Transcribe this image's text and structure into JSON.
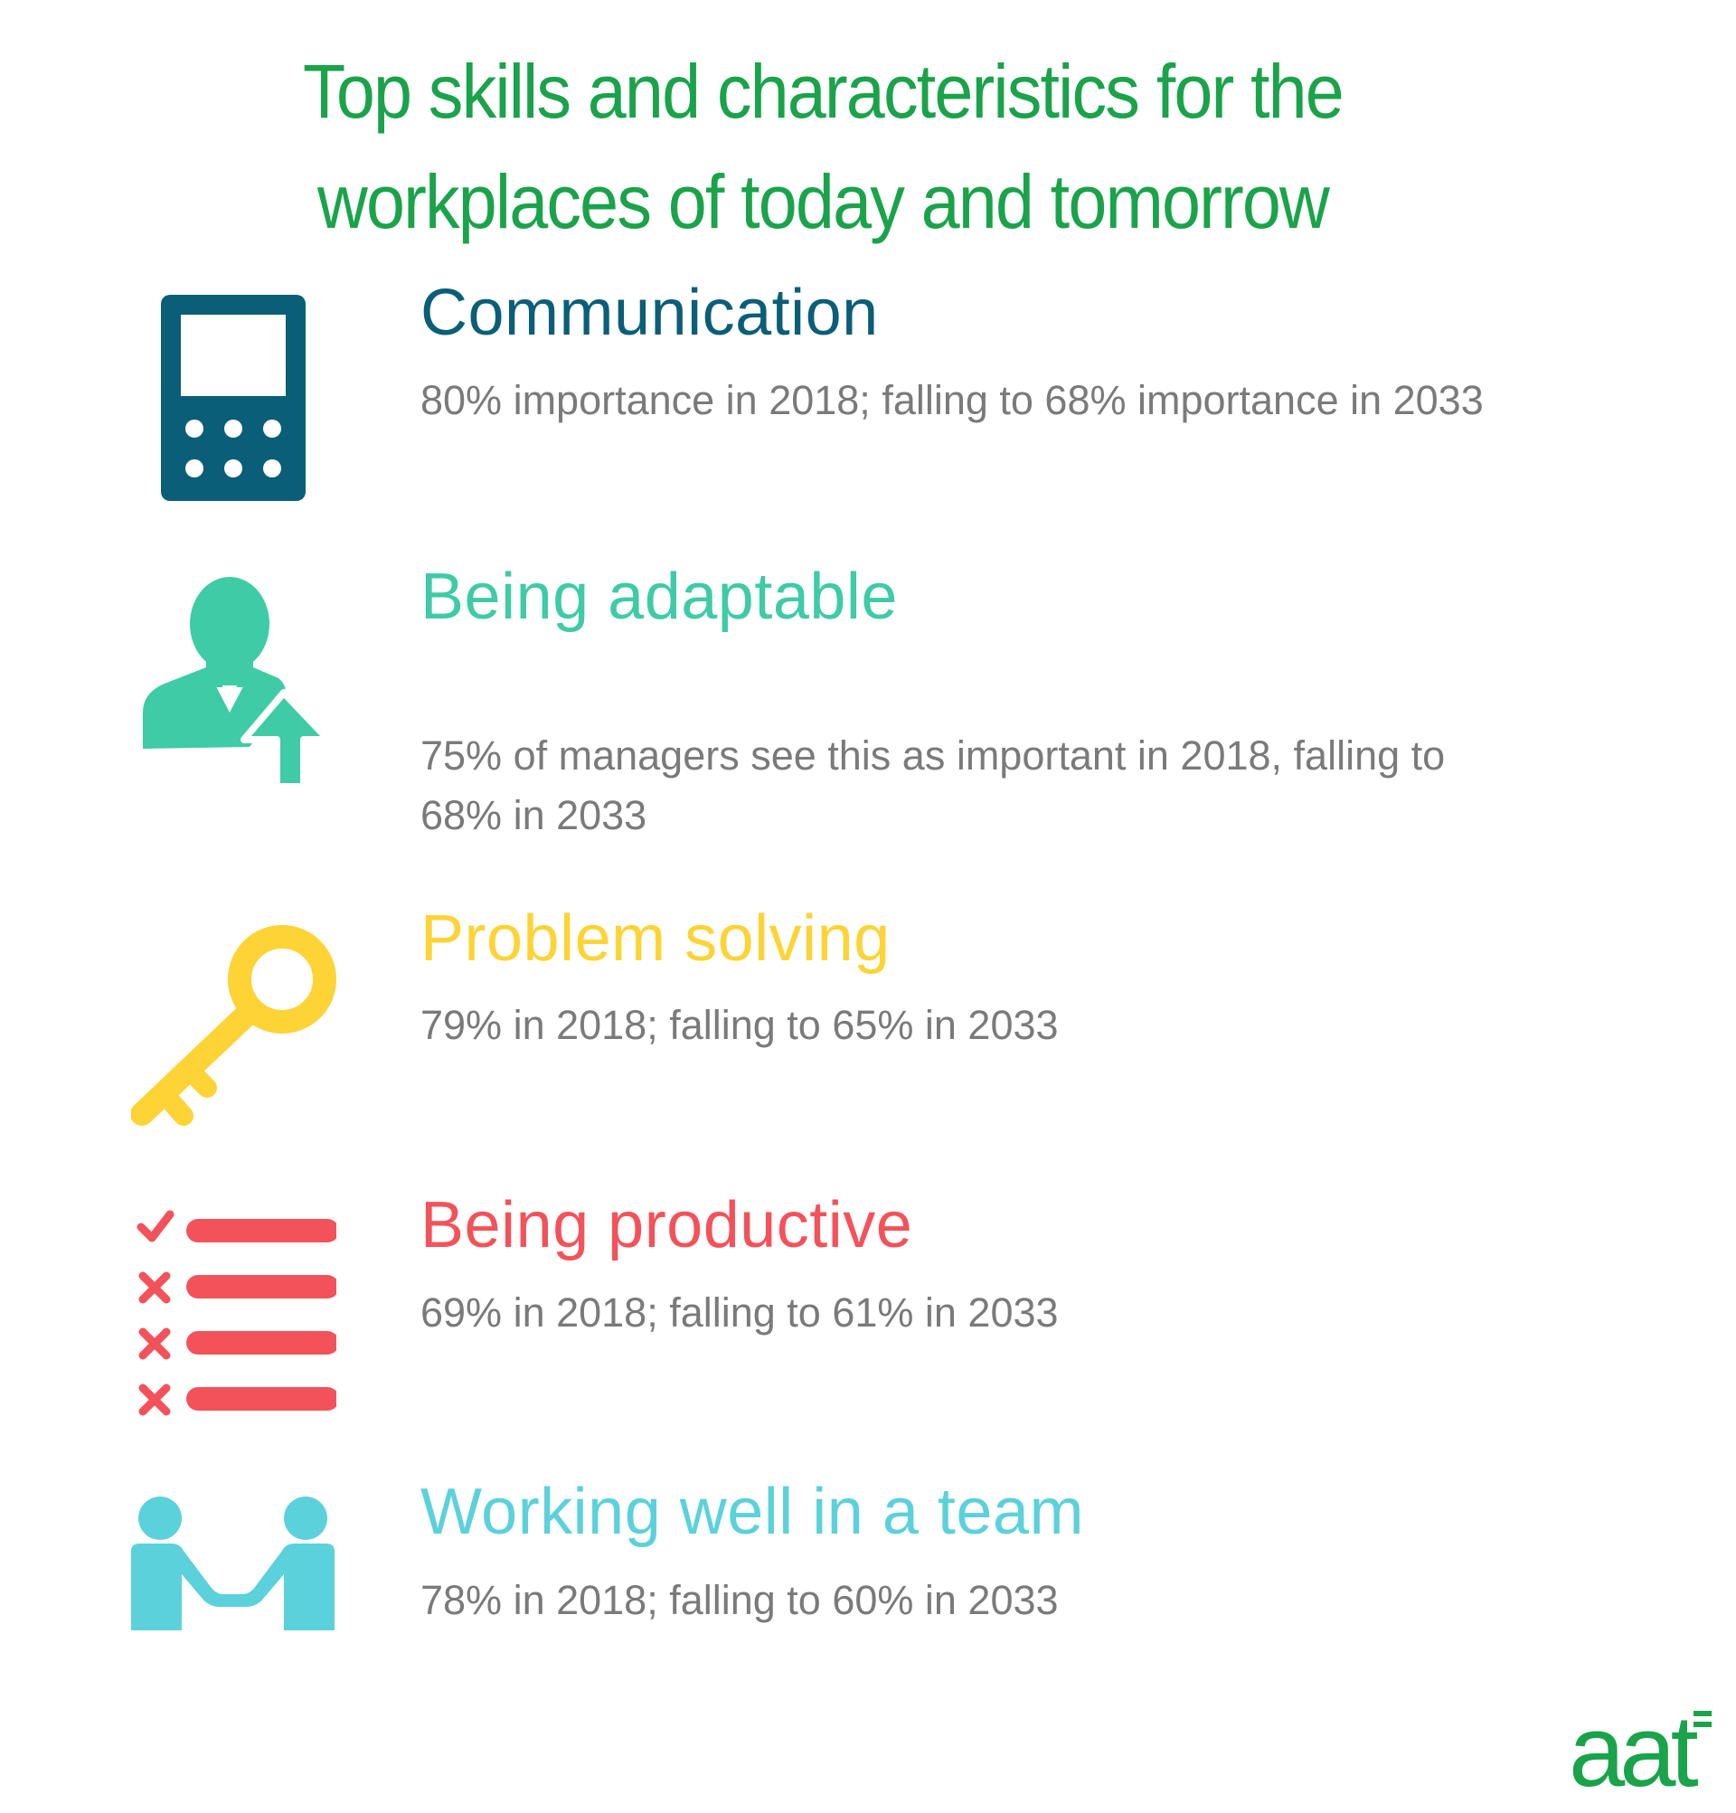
{
  "title_line1": "Top skills and characteristics for the",
  "title_line2": "workplaces of today and tomorrow",
  "skills": [
    {
      "name": "Communication",
      "description": "80% importance in 2018; falling to 68% importance in 2033",
      "color": "#0b5e78",
      "icon": "phone-icon"
    },
    {
      "name": "Being adaptable",
      "description": "75% of managers see this as important in 2018, falling to 68% in 2033",
      "color": "#3ecba6",
      "icon": "person-arrow-up-icon"
    },
    {
      "name": "Problem solving",
      "description": "79% in 2018; falling to 65% in 2033",
      "color": "#fdd335",
      "icon": "key-icon"
    },
    {
      "name": "Being productive",
      "description": "69% in 2018; falling to 61% in 2033",
      "color": "#f3525a",
      "icon": "checklist-icon"
    },
    {
      "name": "Working well in a team",
      "description": "78% in 2018; falling to 60% in 2033",
      "color": "#5bd1dc",
      "icon": "handshake-icon"
    }
  ],
  "logo": {
    "text": "aat",
    "color": "#1aa34a"
  }
}
